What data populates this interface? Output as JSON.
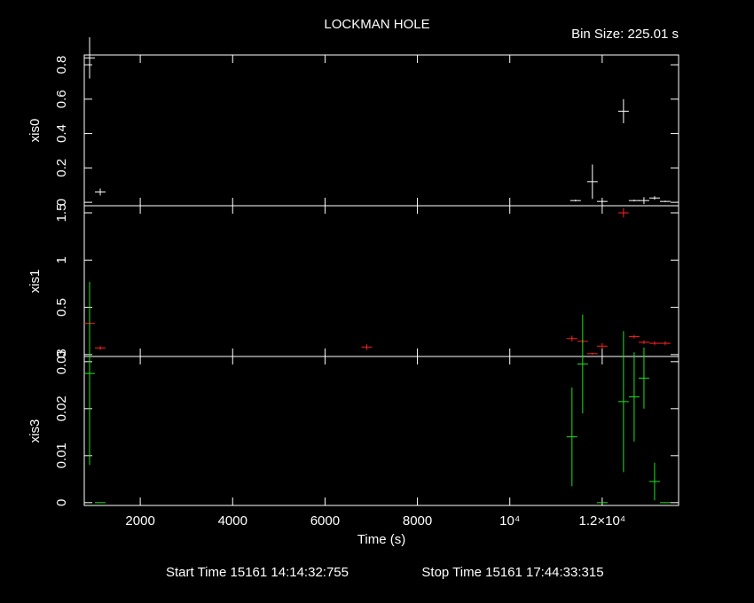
{
  "title": "LOCKMAN HOLE",
  "bin_size": "Bin Size: 225.01 s",
  "footer": {
    "start": "Start Time 15161 14:14:32:755",
    "stop": "Stop Time 15161 17:44:33:315"
  },
  "chart_data": [
    {
      "type": "errorbar",
      "ylabel": "xis0",
      "color": "#ffffff",
      "x": [
        903,
        1134,
        11423,
        11788,
        12000,
        12461,
        12692,
        12904,
        13134,
        13365
      ],
      "values": [
        0.84,
        0.06,
        0.01,
        0.12,
        0.005,
        0.53,
        0.01,
        0.01,
        0.025,
        0.005
      ],
      "errors": [
        0.12,
        0.02,
        0.005,
        0.1,
        0.004,
        0.07,
        0.005,
        0.02,
        0.01,
        0.004
      ],
      "xlim": [
        788,
        13654
      ],
      "ylim": [
        -0.02,
        0.857
      ],
      "yticks": [
        0,
        0.2,
        0.4,
        0.6,
        0.8
      ]
    },
    {
      "type": "errorbar",
      "ylabel": "xis1",
      "color": "#ff2020",
      "x": [
        903,
        1134,
        6903,
        11346,
        11577,
        11788,
        12000,
        12461,
        12692,
        12904,
        13134,
        13365
      ],
      "values": [
        0.33,
        0.07,
        0.08,
        0.17,
        0.14,
        0.01,
        0.09,
        1.5,
        0.19,
        0.13,
        0.12,
        0.12
      ],
      "errors": [
        0.06,
        0.02,
        0.03,
        0.03,
        0.02,
        0.01,
        0.03,
        0.05,
        0.02,
        0.02,
        0.02,
        0.02
      ],
      "xlim": [
        788,
        13654
      ],
      "ylim": [
        -0.02,
        1.575
      ],
      "yticks": [
        0,
        0.5,
        1,
        1.5
      ]
    },
    {
      "type": "errorbar",
      "ylabel": "xis3",
      "color": "#20e020",
      "xlabel": "Time (s)",
      "x": [
        903,
        1134,
        11346,
        11577,
        12000,
        12461,
        12692,
        12904,
        13134,
        13365
      ],
      "values": [
        0.0275,
        0,
        0.014,
        0.0295,
        0,
        0.0215,
        0.0225,
        0.0265,
        0.0045,
        0
      ],
      "errors": [
        0.0195,
        0,
        0.0105,
        0.0105,
        0,
        0.015,
        0.0095,
        0.0065,
        0.004,
        0
      ],
      "xlim": [
        788,
        13654
      ],
      "ylim": [
        -0.0006,
        0.0311
      ],
      "yticks": [
        0,
        0.01,
        0.02,
        0.03
      ],
      "xticks": [
        2000,
        4000,
        6000,
        8000,
        {
          "value": 10000,
          "label": "10⁴"
        },
        {
          "value": 12000,
          "label": "1.2×10⁴"
        }
      ]
    }
  ]
}
